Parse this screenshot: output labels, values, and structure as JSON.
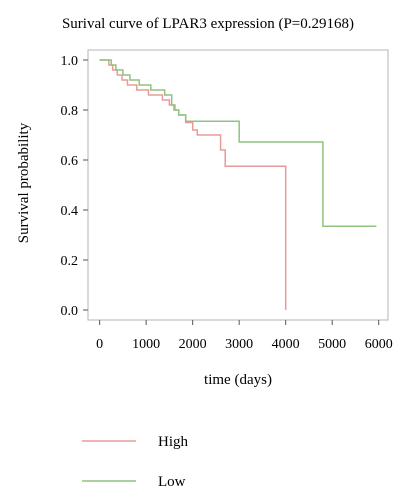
{
  "chart_data": {
    "type": "line",
    "title": "Surival curve of LPAR3 expression (P=0.29168)",
    "xlabel": "time (days)",
    "ylabel": "Survival probability",
    "xlim": [
      -250,
      6200
    ],
    "ylim": [
      -0.04,
      1.04
    ],
    "x_ticks": [
      0,
      1000,
      2000,
      3000,
      4000,
      5000,
      6000
    ],
    "y_ticks": [
      0.0,
      0.2,
      0.4,
      0.6,
      0.8,
      1.0
    ],
    "grid": false,
    "legend_position": "bottom-left",
    "step": true,
    "series": [
      {
        "name": "High",
        "color": "#e89a9a",
        "points": [
          [
            0,
            1.0
          ],
          [
            200,
            0.98
          ],
          [
            280,
            0.96
          ],
          [
            380,
            0.94
          ],
          [
            480,
            0.92
          ],
          [
            600,
            0.9
          ],
          [
            800,
            0.88
          ],
          [
            1050,
            0.86
          ],
          [
            1350,
            0.84
          ],
          [
            1500,
            0.82
          ],
          [
            1620,
            0.8
          ],
          [
            1700,
            0.78
          ],
          [
            1850,
            0.75
          ],
          [
            2000,
            0.72
          ],
          [
            2100,
            0.7
          ],
          [
            2600,
            0.64
          ],
          [
            2700,
            0.575
          ],
          [
            3000,
            0.575
          ],
          [
            4000,
            0.0
          ]
        ]
      },
      {
        "name": "Low",
        "color": "#8fc47f",
        "points": [
          [
            0,
            1.0
          ],
          [
            250,
            0.98
          ],
          [
            350,
            0.96
          ],
          [
            500,
            0.94
          ],
          [
            650,
            0.92
          ],
          [
            850,
            0.9
          ],
          [
            1100,
            0.88
          ],
          [
            1400,
            0.86
          ],
          [
            1550,
            0.82
          ],
          [
            1600,
            0.8
          ],
          [
            1700,
            0.78
          ],
          [
            1850,
            0.755
          ],
          [
            2000,
            0.755
          ],
          [
            2600,
            0.755
          ],
          [
            3000,
            0.672
          ],
          [
            4000,
            0.672
          ],
          [
            4800,
            0.335
          ],
          [
            5950,
            0.335
          ]
        ]
      }
    ]
  }
}
